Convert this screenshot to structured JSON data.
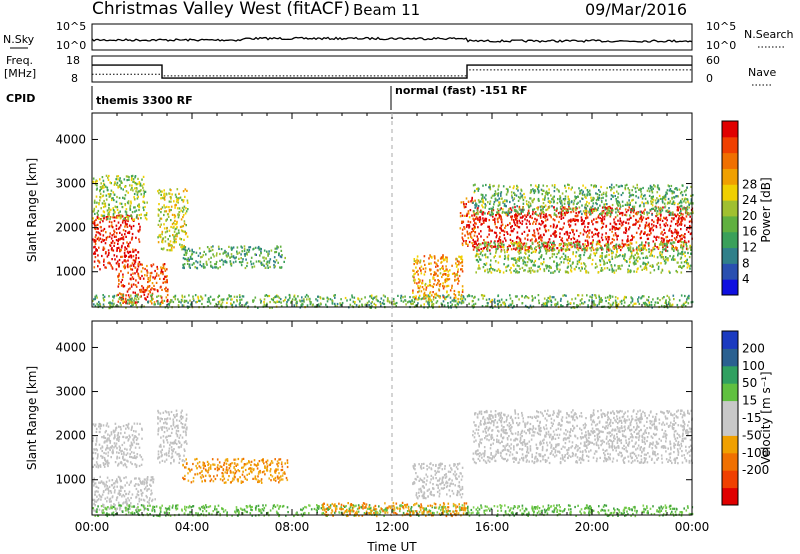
{
  "header": {
    "station": "Christmas Valley West (fitACF)",
    "beam": "Beam 11",
    "date": "09/Mar/2016"
  },
  "side_labels": {
    "nsky": "N.Sky",
    "freq_line1": "Freq.",
    "freq_line2": "[MHz]",
    "cpid": "CPID",
    "nsearch": "N.Search",
    "nave": "Nave"
  },
  "cpid_annotations": [
    "themis 3300 RF",
    "normal (fast) -151 RF"
  ],
  "colors": {
    "power_scale": [
      "#1010e0",
      "#2a50b0",
      "#30808a",
      "#3aa05a",
      "#60b040",
      "#a0c030",
      "#f0d000",
      "#f0a000",
      "#f07000",
      "#f04000",
      "#e00000"
    ],
    "velocity_scale": [
      "#e00000",
      "#f04000",
      "#f07000",
      "#f0a000",
      "#c8c8c8",
      "#c8c8c8",
      "#60c040",
      "#30a060",
      "#2a6090",
      "#1a3ac0"
    ],
    "ground_scatter": "#c0c0c0"
  },
  "chart_data": [
    {
      "type": "line",
      "name": "noise-panel",
      "y_left_ticks": [
        "10^5",
        "10^0"
      ],
      "y_right_ticks": [
        "10^5",
        "10^0"
      ],
      "series": [
        {
          "name": "N.Sky"
        },
        {
          "name": "N.Search"
        }
      ]
    },
    {
      "type": "line",
      "name": "freq-nave-panel",
      "y_left_ticks": [
        "18",
        "8"
      ],
      "y_right_ticks": [
        "60",
        "0"
      ],
      "series": [
        {
          "name": "Freq.",
          "x": [
            0,
            2.8,
            2.8,
            15.0,
            15.0,
            24
          ],
          "values": [
            14.5,
            14.5,
            9.5,
            9.5,
            14.5,
            14.5
          ]
        },
        {
          "name": "Nave",
          "x": [
            0,
            2.8,
            2.8,
            15.0,
            15.0,
            24
          ],
          "values": [
            18,
            18,
            14,
            14,
            28,
            28
          ]
        }
      ]
    },
    {
      "type": "heatmap",
      "name": "power-panel",
      "ylabel": "Slant Range [km]",
      "yticks": [
        1000,
        2000,
        3000,
        4000
      ],
      "ylim": [
        200,
        4600
      ],
      "xlim": [
        0,
        24
      ],
      "colorbar_label": "Power [dB]",
      "colorbar_ticks": [
        4,
        8,
        12,
        16,
        20,
        24,
        28
      ],
      "regions": [
        {
          "t0": 0.0,
          "t1": 1.9,
          "r0": 1050,
          "r1": 2300,
          "level": 0.95
        },
        {
          "t0": 0.0,
          "t1": 2.2,
          "r0": 2200,
          "r1": 3200,
          "level": 0.45
        },
        {
          "t0": 2.6,
          "t1": 3.8,
          "r0": 1500,
          "r1": 2900,
          "level": 0.55
        },
        {
          "t0": 3.6,
          "t1": 7.7,
          "r0": 1100,
          "r1": 1600,
          "level": 0.35
        },
        {
          "t0": 1.0,
          "t1": 3.0,
          "r0": 300,
          "r1": 1200,
          "level": 0.85
        },
        {
          "t0": 0.0,
          "t1": 24.0,
          "r0": 200,
          "r1": 500,
          "level": 0.4
        },
        {
          "t0": 12.8,
          "t1": 14.8,
          "r0": 400,
          "r1": 1400,
          "level": 0.7
        },
        {
          "t0": 14.7,
          "t1": 15.3,
          "r0": 1600,
          "r1": 2700,
          "level": 0.8
        },
        {
          "t0": 15.2,
          "t1": 24.0,
          "r0": 1500,
          "r1": 2500,
          "level": 0.97
        },
        {
          "t0": 15.3,
          "t1": 24.0,
          "r0": 1000,
          "r1": 1700,
          "level": 0.45
        },
        {
          "t0": 15.2,
          "t1": 24.0,
          "r0": 2300,
          "r1": 3000,
          "level": 0.4
        }
      ]
    },
    {
      "type": "heatmap",
      "name": "velocity-panel",
      "xlabel": "Time UT",
      "ylabel": "Slant Range [km]",
      "yticks": [
        1000,
        2000,
        3000,
        4000
      ],
      "ylim": [
        200,
        4600
      ],
      "xlim": [
        0,
        24
      ],
      "xticks": [
        "00:00",
        "04:00",
        "08:00",
        "12:00",
        "16:00",
        "20:00",
        "00:00"
      ],
      "colorbar_label": "Velocity [m s⁻¹]",
      "colorbar_ticks": [
        200,
        100,
        50,
        15,
        -15,
        -50,
        -100,
        -200
      ],
      "regions": [
        {
          "t0": 0.0,
          "t1": 2.0,
          "r0": 1300,
          "r1": 2300,
          "vel": "grey"
        },
        {
          "t0": 2.6,
          "t1": 3.8,
          "r0": 1400,
          "r1": 2600,
          "vel": "grey"
        },
        {
          "t0": 3.6,
          "t1": 7.8,
          "r0": 950,
          "r1": 1500,
          "vel": "orange"
        },
        {
          "t0": 0.0,
          "t1": 2.5,
          "r0": 300,
          "r1": 1100,
          "vel": "grey"
        },
        {
          "t0": 0.0,
          "t1": 24.0,
          "r0": 200,
          "r1": 450,
          "vel": "green"
        },
        {
          "t0": 9.0,
          "t1": 15.0,
          "r0": 200,
          "r1": 500,
          "vel": "orange"
        },
        {
          "t0": 12.8,
          "t1": 14.8,
          "r0": 600,
          "r1": 1400,
          "vel": "grey"
        },
        {
          "t0": 15.2,
          "t1": 24.0,
          "r0": 1400,
          "r1": 2600,
          "vel": "grey"
        }
      ]
    }
  ]
}
